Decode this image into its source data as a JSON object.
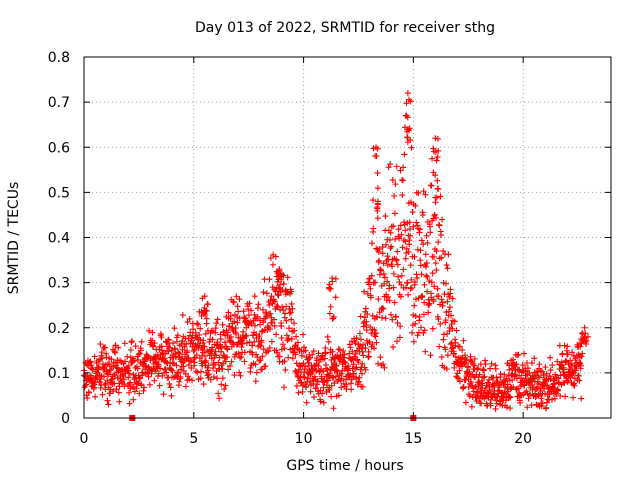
{
  "chart_data": {
    "type": "scatter",
    "title": "Day 013 of 2022, SRMTID for receiver sthg",
    "xlabel": "GPS time / hours",
    "ylabel": "SRMTID / TECUs",
    "xlim": [
      0,
      24
    ],
    "ylim": [
      0,
      0.8
    ],
    "xticks": [
      0,
      5,
      10,
      15,
      20
    ],
    "xtick_labels": [
      "0",
      "5",
      "10",
      "15",
      "20"
    ],
    "yticks": [
      0,
      0.1,
      0.2,
      0.3,
      0.4,
      0.5,
      0.6,
      0.7,
      0.8
    ],
    "ytick_labels": [
      "0",
      "0.1",
      "0.2",
      "0.3",
      "0.4",
      "0.5",
      "0.6",
      "0.7",
      "0.8"
    ],
    "grid": true,
    "marker": "+",
    "color": "#ff0000",
    "square_markers": [
      {
        "x": 2.2,
        "y": 0
      },
      {
        "x": 15.0,
        "y": 0
      }
    ],
    "series_envelope": [
      {
        "x": 0.0,
        "y": 0.09
      },
      {
        "x": 1.0,
        "y": 0.11
      },
      {
        "x": 2.0,
        "y": 0.1
      },
      {
        "x": 3.0,
        "y": 0.12
      },
      {
        "x": 4.0,
        "y": 0.13
      },
      {
        "x": 5.0,
        "y": 0.15
      },
      {
        "x": 5.5,
        "y": 0.16
      },
      {
        "x": 6.0,
        "y": 0.14
      },
      {
        "x": 7.0,
        "y": 0.18
      },
      {
        "x": 7.5,
        "y": 0.2
      },
      {
        "x": 8.0,
        "y": 0.17
      },
      {
        "x": 8.7,
        "y": 0.26
      },
      {
        "x": 9.2,
        "y": 0.24
      },
      {
        "x": 9.6,
        "y": 0.14
      },
      {
        "x": 10.2,
        "y": 0.09
      },
      {
        "x": 11.0,
        "y": 0.1
      },
      {
        "x": 12.0,
        "y": 0.11
      },
      {
        "x": 12.6,
        "y": 0.15
      },
      {
        "x": 13.2,
        "y": 0.26
      },
      {
        "x": 13.8,
        "y": 0.33
      },
      {
        "x": 14.3,
        "y": 0.38
      },
      {
        "x": 14.7,
        "y": 0.47
      },
      {
        "x": 15.0,
        "y": 0.33
      },
      {
        "x": 15.5,
        "y": 0.3
      },
      {
        "x": 16.0,
        "y": 0.38
      },
      {
        "x": 16.4,
        "y": 0.26
      },
      {
        "x": 17.0,
        "y": 0.13
      },
      {
        "x": 18.0,
        "y": 0.07
      },
      {
        "x": 19.0,
        "y": 0.06
      },
      {
        "x": 19.6,
        "y": 0.1
      },
      {
        "x": 20.2,
        "y": 0.07
      },
      {
        "x": 21.0,
        "y": 0.07
      },
      {
        "x": 21.5,
        "y": 0.08
      },
      {
        "x": 22.0,
        "y": 0.11
      },
      {
        "x": 22.7,
        "y": 0.12
      }
    ],
    "peaks": [
      {
        "x": 14.75,
        "y": 0.72
      },
      {
        "x": 16.0,
        "y": 0.62
      },
      {
        "x": 13.3,
        "y": 0.6
      },
      {
        "x": 8.9,
        "y": 0.33
      },
      {
        "x": 11.3,
        "y": 0.31
      },
      {
        "x": 5.5,
        "y": 0.27
      },
      {
        "x": 22.8,
        "y": 0.2
      }
    ]
  }
}
